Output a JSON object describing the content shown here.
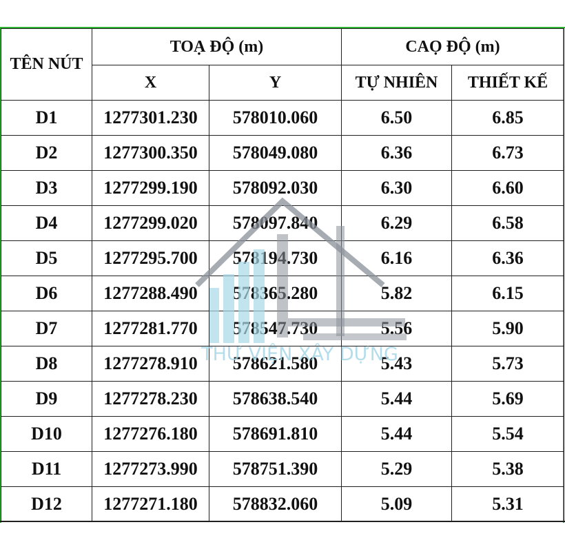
{
  "table": {
    "header": {
      "node_name": "TÊN NÚT",
      "coordinates": "TOẠ ĐỘ (m)",
      "elevation": "CAỌ ĐỘ (m)",
      "x": "X",
      "y": "Y",
      "natural": "TỰ NHIÊN",
      "design": "THIẾT KẾ"
    },
    "rows": [
      {
        "name": "D1",
        "x": "1277301.230",
        "y": "578010.060",
        "natural": "6.50",
        "design": "6.85"
      },
      {
        "name": "D2",
        "x": "1277300.350",
        "y": "578049.080",
        "natural": "6.36",
        "design": "6.73"
      },
      {
        "name": "D3",
        "x": "1277299.190",
        "y": "578092.030",
        "natural": "6.30",
        "design": "6.60"
      },
      {
        "name": "D4",
        "x": "1277299.020",
        "y": "578097.840",
        "natural": "6.29",
        "design": "6.58"
      },
      {
        "name": "D5",
        "x": "1277295.700",
        "y": "578194.730",
        "natural": "6.16",
        "design": "6.36"
      },
      {
        "name": "D6",
        "x": "1277288.490",
        "y": "578365.280",
        "natural": "5.82",
        "design": "6.15"
      },
      {
        "name": "D7",
        "x": "1277281.770",
        "y": "578547.730",
        "natural": "5.56",
        "design": "5.90"
      },
      {
        "name": "D8",
        "x": "1277278.910",
        "y": "578621.580",
        "natural": "5.43",
        "design": "5.73"
      },
      {
        "name": "D9",
        "x": "1277278.230",
        "y": "578638.540",
        "natural": "5.44",
        "design": "5.69"
      },
      {
        "name": "D10",
        "x": "1277276.180",
        "y": "578691.810",
        "natural": "5.44",
        "design": "5.54"
      },
      {
        "name": "D11",
        "x": "1277273.990",
        "y": "578751.390",
        "natural": "5.29",
        "design": "5.38"
      },
      {
        "name": "D12",
        "x": "1277271.180",
        "y": "578832.060",
        "natural": "5.09",
        "design": "5.31"
      }
    ]
  },
  "watermark": {
    "text": "THƯ VIỆN XÂY DỰNG",
    "icon": "house-logo-icon",
    "colors": {
      "light_blue": "#a7d8e8",
      "gray": "#8a9099"
    }
  },
  "colors": {
    "frame_green": "#2fb52f",
    "grid_line": "#1f1f1f",
    "text": "#111111"
  }
}
